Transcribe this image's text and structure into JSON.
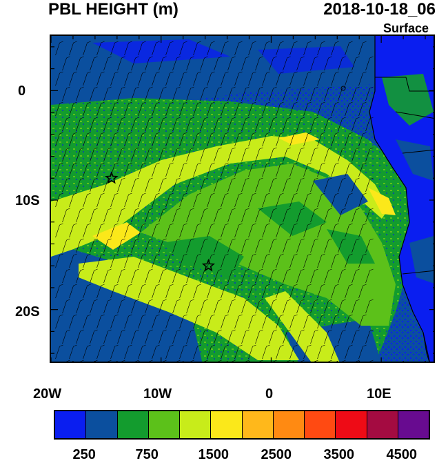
{
  "title_left": "PBL HEIGHT (m)",
  "title_right": "2018-10-18_06",
  "level_label": "Surface",
  "lat_labels": [
    "0",
    "10S",
    "20S"
  ],
  "lon_labels": [
    "20W",
    "10W",
    "0",
    "10E"
  ],
  "colorbar": {
    "colors": [
      "#0a1ef0",
      "#0b4f9e",
      "#139c2e",
      "#5cc11a",
      "#c8ec1a",
      "#fbe81a",
      "#ffb81b",
      "#ff8a12",
      "#ff4a12",
      "#ee0b16",
      "#a40b41",
      "#680b90"
    ],
    "labels": [
      "250",
      "750",
      "1500",
      "2500",
      "3500",
      "4500"
    ]
  },
  "markers": [
    {
      "name": "star-marker-1",
      "lon": -14.5,
      "lat": -8
    },
    {
      "name": "star-marker-2",
      "lon": -5.7,
      "lat": -16
    }
  ]
}
